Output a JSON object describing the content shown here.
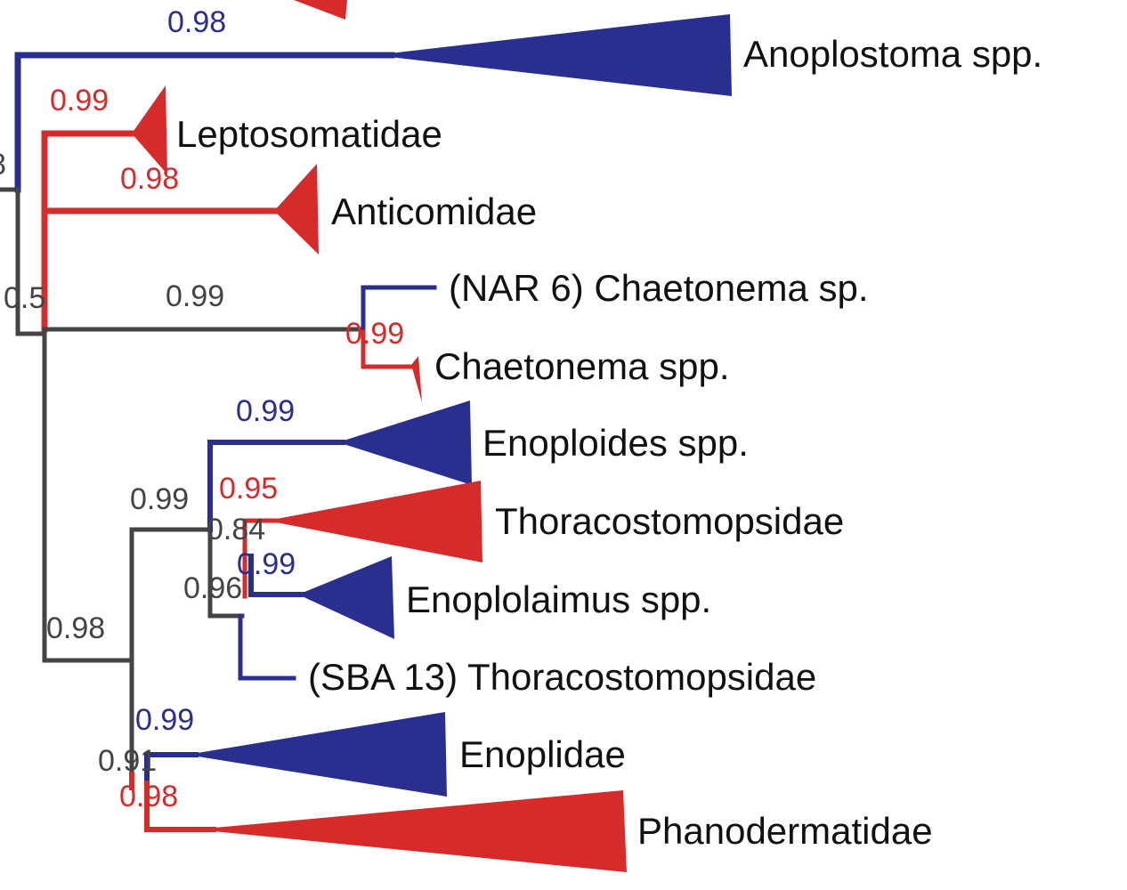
{
  "colors": {
    "blue": "#2a2f8f",
    "red": "#d62b2b",
    "grey": "#444444"
  },
  "taxa": [
    {
      "id": "anoplostoma",
      "label": "Anoplostoma spp.",
      "color": "blue"
    },
    {
      "id": "leptosomatidae",
      "label": "Leptosomatidae",
      "color": "red"
    },
    {
      "id": "anticomidae",
      "label": "Anticomidae",
      "color": "red"
    },
    {
      "id": "nar6-chaetonema",
      "label": "(NAR 6) Chaetonema sp.",
      "color": "blue"
    },
    {
      "id": "chaetonema",
      "label": "Chaetonema spp.",
      "color": "red"
    },
    {
      "id": "enoploides",
      "label": "Enoploides spp.",
      "color": "blue"
    },
    {
      "id": "thoracostomopsidae",
      "label": "Thoracostomopsidae",
      "color": "red"
    },
    {
      "id": "enoplolaimus",
      "label": "Enoplolaimus spp.",
      "color": "blue"
    },
    {
      "id": "sba13-thoracostomopsidae",
      "label": "(SBA 13) Thoracostomopsidae",
      "color": "blue"
    },
    {
      "id": "enoplidae",
      "label": "Enoplidae",
      "color": "blue"
    },
    {
      "id": "phanodermatidae",
      "label": "Phanodermatidae",
      "color": "red"
    }
  ],
  "support": [
    {
      "id": "s-top",
      "value": "0.98",
      "color": "blue"
    },
    {
      "id": "s-left-edge",
      "value": "8",
      "color": "grey"
    },
    {
      "id": "s-lepto",
      "value": "0.99",
      "color": "red"
    },
    {
      "id": "s-anticom",
      "value": "0.98",
      "color": "red"
    },
    {
      "id": "s-half",
      "value": "0.5",
      "color": "grey"
    },
    {
      "id": "s-chaet-branch",
      "value": "0.99",
      "color": "grey"
    },
    {
      "id": "s-chaet-node",
      "value": "0.99",
      "color": "red"
    },
    {
      "id": "s-enoploides",
      "value": "0.99",
      "color": "blue"
    },
    {
      "id": "s-thoraco-clade",
      "value": "0.99",
      "color": "grey"
    },
    {
      "id": "s-thoraco",
      "value": "0.95",
      "color": "red"
    },
    {
      "id": "s-84",
      "value": "0.84",
      "color": "grey"
    },
    {
      "id": "s-enoplolaimus",
      "value": "0.99",
      "color": "blue"
    },
    {
      "id": "s-96",
      "value": "0.96",
      "color": "grey"
    },
    {
      "id": "s-lower",
      "value": "0.98",
      "color": "grey"
    },
    {
      "id": "s-enoplidae",
      "value": "0.99",
      "color": "blue"
    },
    {
      "id": "s-91",
      "value": "0.91",
      "color": "grey"
    },
    {
      "id": "s-phano",
      "value": "0.98",
      "color": "red"
    }
  ]
}
